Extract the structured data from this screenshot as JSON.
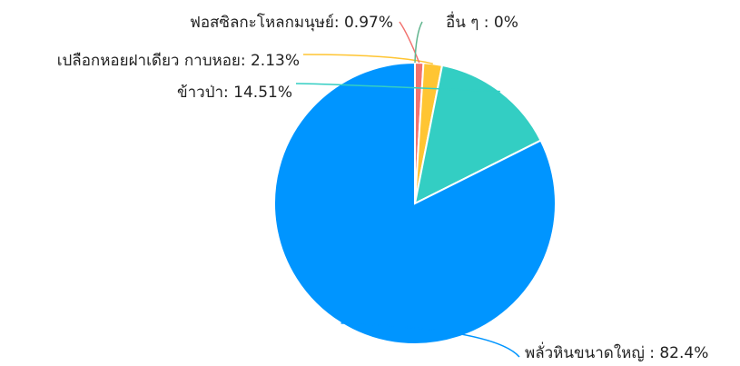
{
  "chart_data": {
    "type": "pie",
    "title": "",
    "slices": [
      {
        "label": "พลั่วหินขนาดใหญ่ : 82.4%",
        "name": "พลั่วหินขนาดใหญ่",
        "value": 82.4,
        "color": "#0095FF"
      },
      {
        "label": "ข้าวป่า: 14.51%",
        "name": "ข้าวป่า",
        "value": 14.51,
        "color": "#33CEC3"
      },
      {
        "label": "เปลือกหอยฝาเดียว กาบหอย: 2.13%",
        "name": "เปลือกหอยฝาเดียว กาบหอย",
        "value": 2.13,
        "color": "#FFC533"
      },
      {
        "label": "ฟอสซิลกะโหลกมนุษย์: 0.97%",
        "name": "ฟอสซิลกะโหลกมนุษย์",
        "value": 0.97,
        "color": "#F2726F"
      },
      {
        "label": "อื่น ๆ : 0%",
        "name": "อื่น ๆ",
        "value": 0,
        "color": "#62B58F"
      }
    ]
  }
}
